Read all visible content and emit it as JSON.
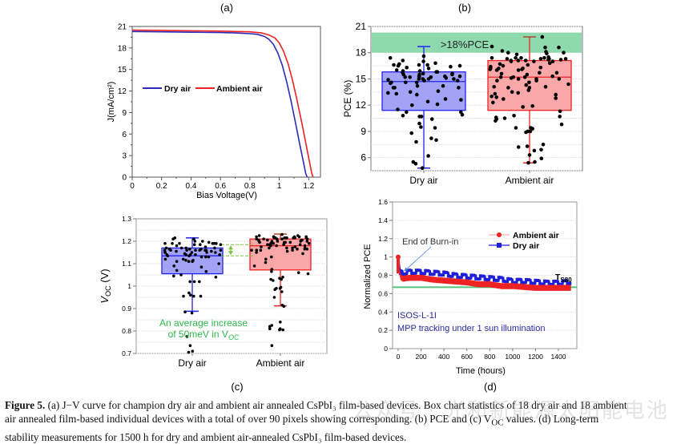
{
  "figure": {
    "caption": {
      "label": "Figure 5.",
      "line1": " (a) J−V curve for champion dry air and ambient air annealed CsPbI₃ film-based devices. Box chart statistics of 18 dry air and 18 ambient",
      "line2": "air annealed film-based individual devices with a total of over 90 pixels showing corresponding. (b) PCE and (c) V",
      "line2_sub": "OC",
      "line2_end": " values. (d) Long-term",
      "line3": "stability measurements for 1500 h for dry and ambient air-annealed CsPbI₃ film-based devices."
    },
    "watermark": "公众号 · 光和新能源太阳能电池"
  },
  "chart_data": [
    {
      "panel": "(a)",
      "type": "line",
      "title": "",
      "xlabel": "Bias Voltage(V)",
      "ylabel": "J(mA/cm²)",
      "xlim": [
        0,
        1.28
      ],
      "ylim": [
        0,
        21
      ],
      "xticks": [
        0,
        0.2,
        0.4,
        0.6,
        0.8,
        1,
        1.2
      ],
      "xtick_labels": [
        "0",
        "0.2",
        "0.4",
        "0.6",
        "0.8",
        "1",
        "1.2"
      ],
      "yticks": [
        0,
        3,
        6,
        9,
        12,
        15,
        18,
        21
      ],
      "ytick_labels": [
        "0",
        "3",
        "6",
        "9",
        "12",
        "15",
        "18",
        "21"
      ],
      "legend": "center-left",
      "series": [
        {
          "name": "Dry air",
          "color": "#2b2bb8",
          "x": [
            0,
            0.2,
            0.4,
            0.6,
            0.7,
            0.8,
            0.85,
            0.9,
            0.93,
            0.96,
            0.99,
            1.02,
            1.05,
            1.08,
            1.11,
            1.14,
            1.16,
            1.18,
            1.19
          ],
          "y": [
            20.3,
            20.25,
            20.2,
            20.15,
            20.1,
            20.0,
            19.9,
            19.6,
            19.2,
            18.5,
            17.3,
            15.6,
            13.3,
            10.6,
            7.6,
            4.5,
            2.5,
            0.5,
            0
          ]
        },
        {
          "name": "Ambient air",
          "color": "#ee2222",
          "x": [
            0,
            0.2,
            0.4,
            0.6,
            0.7,
            0.8,
            0.88,
            0.93,
            0.97,
            1.0,
            1.03,
            1.06,
            1.09,
            1.12,
            1.15,
            1.18,
            1.2,
            1.22,
            1.23
          ],
          "y": [
            20.5,
            20.45,
            20.4,
            20.35,
            20.3,
            20.25,
            20.1,
            19.8,
            19.4,
            18.7,
            17.5,
            15.8,
            13.5,
            10.8,
            7.9,
            4.8,
            2.7,
            0.6,
            0
          ]
        }
      ]
    },
    {
      "panel": "(b)",
      "type": "box",
      "xlabel": "",
      "ylabel": "PCE (%)",
      "ylim": [
        4.5,
        21
      ],
      "yticks": [
        6,
        9,
        12,
        15,
        18,
        21
      ],
      "ytick_labels": [
        "6",
        "9",
        "12",
        "15",
        "18",
        "21"
      ],
      "categories": [
        "Dry air",
        "Ambient air"
      ],
      "band": {
        "label": ">18%PCE",
        "from": 18,
        "to": 20.3,
        "color": "#8fd9ae"
      },
      "series": [
        {
          "name": "Dry air",
          "color": "#2222ee",
          "fill": "#a3a3f5",
          "q1": 11.4,
          "median": 14.7,
          "q3": 15.8,
          "whisker_low": 4.8,
          "whisker_high": 18.7,
          "points": [
            15.6,
            15.0,
            14.0,
            15.5,
            15.3,
            14.8,
            14.5,
            15.0,
            15.2,
            14.6,
            16.3,
            15.1,
            15.8,
            17.4,
            17.6,
            17.1,
            15.8,
            16.0,
            16.2,
            15.0,
            16.5,
            14.9,
            14.0,
            12.6,
            16.6,
            15.5,
            15.3,
            16.7,
            14.2,
            12.4,
            12.1,
            11.2,
            11.5,
            10.9,
            10.7,
            15.7,
            16.6,
            13.5,
            13.3,
            12.7,
            12.0,
            9.9,
            8.8,
            8.0,
            7.8,
            9.4,
            10.7,
            10.8,
            10.4,
            9.5,
            8.2,
            6.2,
            5.5,
            5.3,
            4.8,
            14.6,
            13.4,
            13.2,
            13.6,
            16.8,
            16.5,
            15.2,
            15.0,
            17.0,
            16.6,
            16.4,
            15.9,
            15.3,
            15.2,
            15.9,
            14.2,
            14.0,
            14.6,
            15.3,
            15.5,
            11.2,
            14.8,
            15.6
          ]
        },
        {
          "name": "Ambient air",
          "color": "#ee2222",
          "fill": "#f8a8a8",
          "q1": 11.4,
          "median": 15.2,
          "q3": 17.1,
          "whisker_low": 5.4,
          "whisker_high": 19.8,
          "points": [
            17.3,
            17.3,
            17.0,
            17.4,
            17.4,
            17.1,
            17.3,
            17.4,
            17.4,
            17.2,
            17.0,
            17.3,
            16.2,
            16.0,
            15.0,
            15.2,
            14.8,
            14.4,
            14.3,
            15.0,
            14.8,
            15.5,
            16.7,
            17.0,
            17.2,
            17.1,
            18.7,
            18.2,
            18.1,
            18.6,
            19.8,
            18.6,
            18.0,
            13.2,
            12.7,
            12.3,
            12.9,
            13.0,
            11.9,
            12.8,
            15.7,
            15.6,
            14.6,
            14.1,
            13.5,
            13.7,
            13.3,
            13.4,
            14.0,
            15.2,
            15.3,
            15.2,
            16.5,
            16.1,
            15.7,
            16.0,
            16.1,
            16.2,
            16.6,
            16.2,
            16.4,
            16.8,
            17.1,
            17.5,
            17.8,
            18.0,
            17.9,
            16.3,
            15.1,
            15.0,
            10.6,
            10.7,
            10.4,
            10.2,
            10.5,
            10.8,
            9.4,
            9.3,
            9.0,
            8.9,
            9.4,
            9.8,
            9.0,
            7.3,
            7.2,
            6.9,
            6.8,
            6.3,
            5.9,
            5.5,
            5.4,
            7.5,
            11.3,
            11.8,
            14.0,
            14.1
          ]
        }
      ]
    },
    {
      "panel": "(c)",
      "type": "box",
      "xlabel": "",
      "ylabel": "V_OC (V)",
      "ylim": [
        0.7,
        1.3
      ],
      "yticks": [
        0.7,
        0.8,
        0.9,
        1.0,
        1.1,
        1.2,
        1.3
      ],
      "ytick_labels": [
        "0.7",
        "0.8",
        "0.9",
        "1",
        "1.1",
        "1.2",
        "1.3"
      ],
      "categories": [
        "Dry air",
        "Ambient air"
      ],
      "annotation": {
        "line1": "An average increase",
        "line2": "of 50meV in V",
        "line2_sub": "OC",
        "color": "#2db84a",
        "from": 1.135,
        "to": 1.185
      },
      "series": [
        {
          "name": "Dry air",
          "color": "#2222ee",
          "fill": "#a3a3f5",
          "q1": 1.055,
          "median": 1.135,
          "q3": 1.17,
          "whisker_low": 0.888,
          "whisker_high": 1.215,
          "points": [
            1.195,
            1.19,
            1.2,
            1.185,
            1.185,
            1.155,
            1.11,
            1.135,
            1.14,
            1.16,
            1.165,
            1.17,
            1.15,
            1.13,
            1.11,
            1.135,
            1.19,
            1.16,
            1.17,
            1.145,
            1.14,
            1.16,
            1.13,
            1.19,
            1.2,
            1.21,
            1.215,
            1.21,
            1.17,
            1.16,
            1.1,
            1.115,
            1.12,
            1.115,
            1.09,
            1.085,
            1.07,
            1.065,
            1.05,
            1.04,
            1.02,
            1.02,
            1.02,
            1.045,
            0.97,
            0.96,
            0.955,
            0.955,
            0.955,
            0.885,
            0.88,
            0.775,
            0.735,
            0.71,
            0.705,
            1.15,
            1.14,
            1.16,
            1.165,
            1.14,
            1.15,
            1.165,
            1.16,
            1.155,
            1.14,
            1.15,
            1.16,
            1.175,
            1.19,
            1.19,
            1.185,
            1.19,
            1.12,
            1.11,
            1.13,
            1.15,
            1.18,
            1.16,
            1.17
          ]
        },
        {
          "name": "Ambient air",
          "color": "#ee2222",
          "fill": "#f8a8a8",
          "q1": 1.072,
          "median": 1.18,
          "q3": 1.21,
          "whisker_low": 0.912,
          "whisker_high": 1.232,
          "points": [
            1.215,
            1.22,
            1.22,
            1.225,
            1.215,
            1.22,
            1.21,
            1.225,
            1.215,
            1.215,
            1.21,
            1.205,
            1.2,
            1.185,
            1.16,
            1.165,
            1.155,
            1.165,
            1.17,
            1.185,
            1.195,
            1.2,
            1.16,
            1.165,
            1.17,
            1.18,
            1.19,
            1.185,
            1.195,
            1.205,
            1.215,
            1.22,
            1.22,
            1.23,
            1.21,
            1.215,
            1.22,
            1.21,
            1.195,
            1.19,
            1.18,
            1.175,
            1.17,
            1.2,
            1.205,
            1.21,
            1.15,
            1.145,
            1.13,
            1.12,
            1.105,
            1.09,
            1.075,
            1.065,
            1.055,
            1.06,
            1.04,
            1.03,
            1.03,
            1.035,
            1.025,
            0.99,
            0.99,
            0.985,
            0.995,
            0.975,
            0.95,
            0.915,
            0.91,
            0.84,
            0.825,
            0.82,
            0.81,
            0.805,
            0.81,
            0.805,
            0.735,
            1.16,
            1.17,
            1.18,
            1.195,
            1.2,
            1.205,
            1.175,
            1.16,
            1.185,
            1.19,
            1.2,
            1.215,
            1.215
          ]
        }
      ]
    },
    {
      "panel": "(d)",
      "type": "line",
      "xlabel": "Time (hours)",
      "ylabel": "Normalized PCE",
      "xlim": [
        -50,
        1570
      ],
      "ylim": [
        0,
        1.6
      ],
      "xticks": [
        0,
        200,
        400,
        600,
        800,
        1000,
        1200,
        1400
      ],
      "xtick_labels": [
        "0",
        "200",
        "400",
        "600",
        "800",
        "1000",
        "1200",
        "1400"
      ],
      "yticks": [
        0,
        0.2,
        0.4,
        0.6,
        0.8,
        1,
        1.2,
        1.4,
        1.6
      ],
      "ytick_labels": [
        "0",
        "0.2",
        "0.4",
        "0.6",
        "0.8",
        "1",
        "1.2",
        "1.4",
        "1.6"
      ],
      "legend": "top-right",
      "reference_line": {
        "y": 0.67,
        "color": "#55c27a",
        "label": "T",
        "label_sub": "S80"
      },
      "annotations": [
        {
          "text": "End of Burn-in",
          "arrow_to": [
            40,
            0.8
          ],
          "color": "#333333"
        },
        {
          "text": "ISOS-L-1I",
          "color": "#2a2aa0"
        },
        {
          "text": "MPP tracking under 1 sun illumination",
          "color": "#2a2aa0"
        }
      ],
      "series": [
        {
          "name": "Ambient air",
          "color": "#ee2222",
          "marker": "circle",
          "x": [
            0,
            10,
            20,
            40,
            100,
            200,
            300,
            400,
            500,
            600,
            700,
            800,
            900,
            1000,
            1100,
            1200,
            1300,
            1400,
            1500
          ],
          "y": [
            1.0,
            0.86,
            0.78,
            0.76,
            0.77,
            0.77,
            0.75,
            0.74,
            0.73,
            0.72,
            0.7,
            0.7,
            0.68,
            0.68,
            0.67,
            0.66,
            0.66,
            0.66,
            0.66
          ]
        },
        {
          "name": "Dry air",
          "color": "#1f1fd8",
          "marker": "square",
          "x": [
            0,
            10,
            20,
            40,
            100,
            200,
            300,
            400,
            500,
            600,
            700,
            800,
            900,
            1000,
            1100,
            1200,
            1300,
            1400,
            1500
          ],
          "y": [
            0.98,
            0.88,
            0.82,
            0.81,
            0.82,
            0.82,
            0.81,
            0.8,
            0.78,
            0.77,
            0.76,
            0.75,
            0.74,
            0.72,
            0.72,
            0.71,
            0.7,
            0.7,
            0.71
          ]
        }
      ]
    }
  ]
}
